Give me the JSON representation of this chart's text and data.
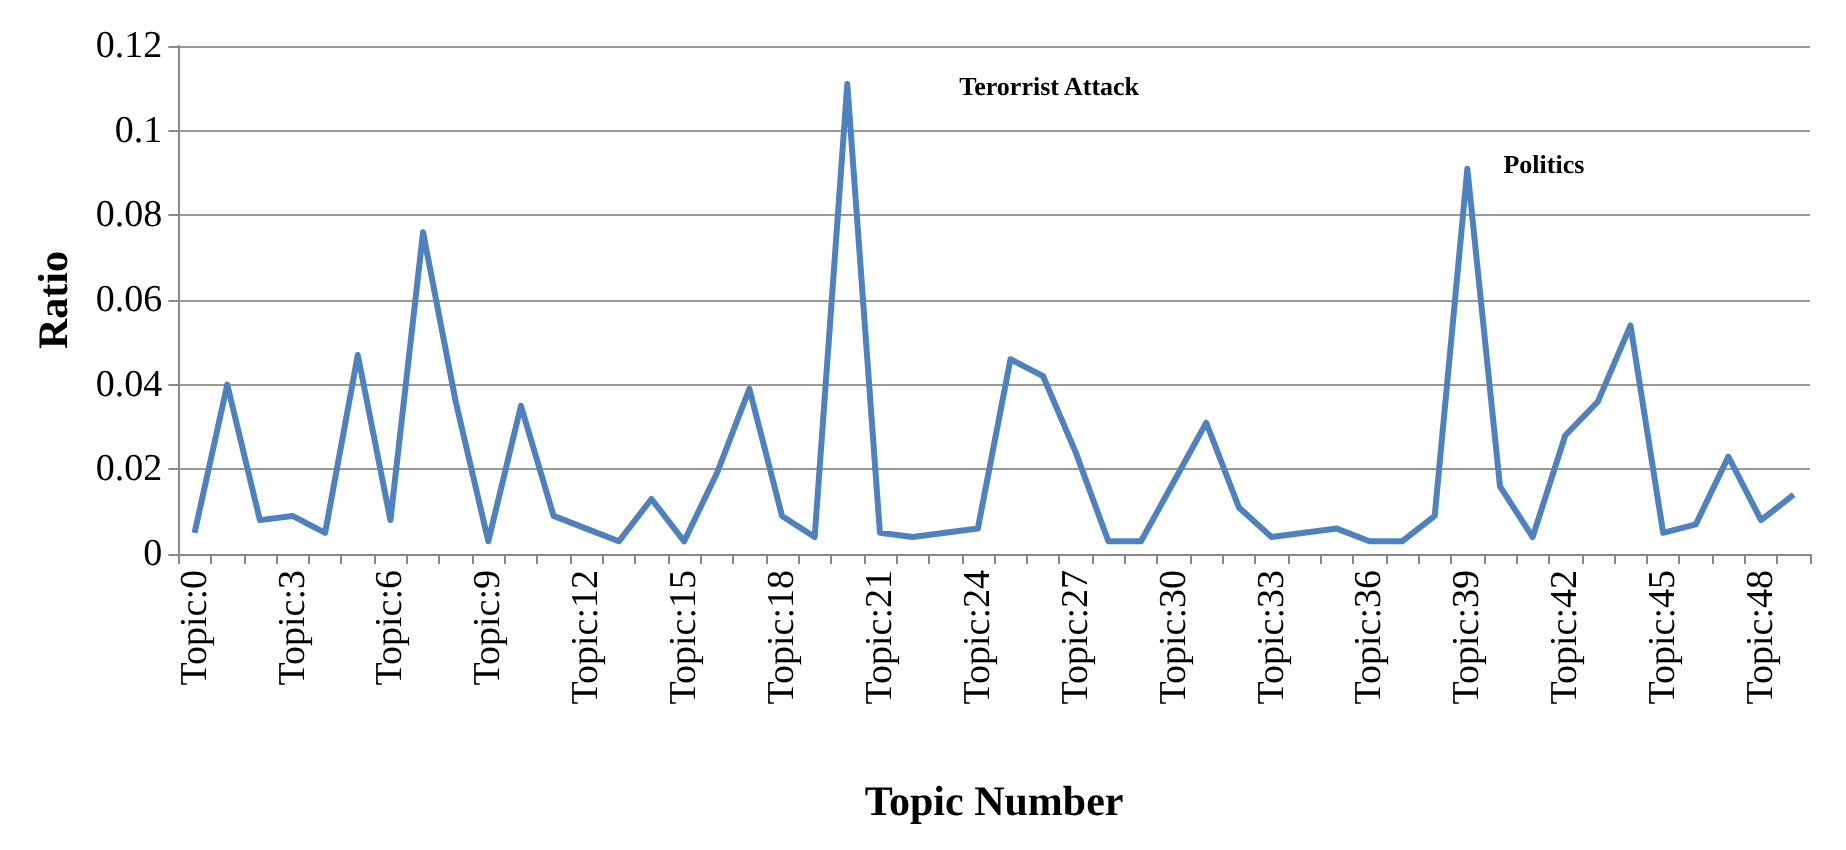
{
  "chart_data": {
    "type": "line",
    "xlabel": "Topic Number",
    "ylabel": "Ratio",
    "categories": [
      "Topic:0",
      null,
      null,
      "Topic:3",
      null,
      null,
      "Topic:6",
      null,
      null,
      "Topic:9",
      null,
      null,
      "Topic:12",
      null,
      null,
      "Topic:15",
      null,
      null,
      "Topic:18",
      null,
      null,
      "Topic:21",
      null,
      null,
      "Topic:24",
      null,
      null,
      "Topic:27",
      null,
      null,
      "Topic:30",
      null,
      null,
      "Topic:33",
      null,
      null,
      "Topic:36",
      null,
      null,
      "Topic:39",
      null,
      null,
      "Topic:42",
      null,
      null,
      "Topic:45",
      null,
      null,
      "Topic:48",
      null
    ],
    "series": [
      {
        "color": "#4f81bd",
        "values": [
          0.005,
          0.04,
          0.008,
          0.009,
          0.005,
          0.047,
          0.008,
          0.076,
          0.036,
          0.003,
          0.035,
          0.009,
          0.006,
          0.003,
          0.013,
          0.003,
          0.019,
          0.039,
          0.009,
          0.004,
          0.111,
          0.005,
          0.004,
          0.005,
          0.006,
          0.046,
          0.042,
          0.024,
          0.003,
          0.003,
          0.017,
          0.031,
          0.011,
          0.004,
          0.005,
          0.006,
          0.003,
          0.003,
          0.009,
          0.091,
          0.016,
          0.004,
          0.028,
          0.036,
          0.054,
          0.005,
          0.007,
          0.023,
          0.008,
          0.014
        ]
      }
    ],
    "ylim": [
      0,
      0.12
    ],
    "yticks": [
      0,
      0.02,
      0.04,
      0.06,
      0.08,
      0.1,
      0.12
    ],
    "grid": "y",
    "marker": "none",
    "line_style": "solid",
    "annotations": [
      "Terorrist Attack",
      "Politics"
    ]
  }
}
